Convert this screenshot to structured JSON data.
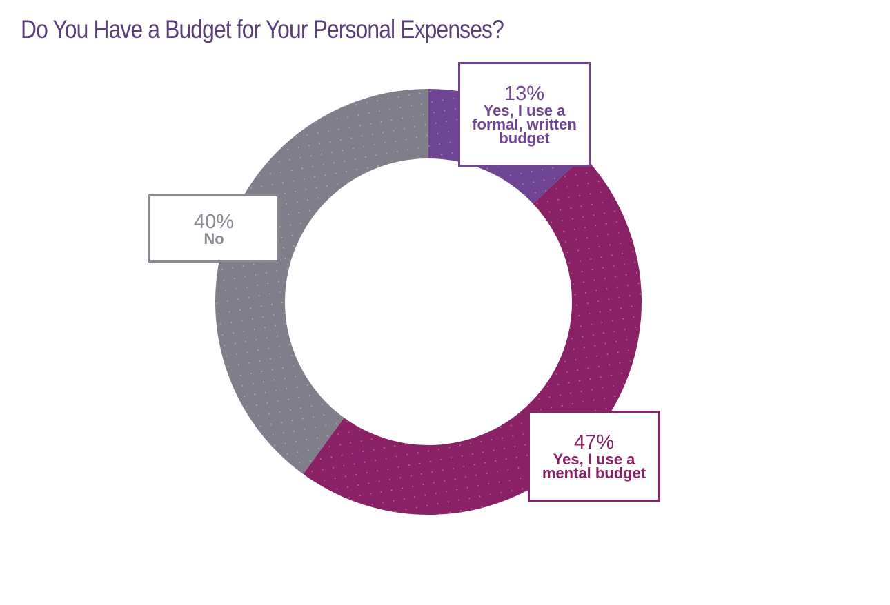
{
  "chart_data": {
    "type": "pie",
    "donut": true,
    "title": "Do You Have a Budget for Your Personal Expenses?",
    "slices": [
      {
        "label": "Yes, I use a formal, written budget",
        "value": 13,
        "display": "13%",
        "color": "#6f4493"
      },
      {
        "label": "Yes, I use a mental budget",
        "value": 47,
        "display": "47%",
        "color": "#8a2166"
      },
      {
        "label": "No",
        "value": 40,
        "display": "40%",
        "color": "#807e8a"
      }
    ]
  }
}
